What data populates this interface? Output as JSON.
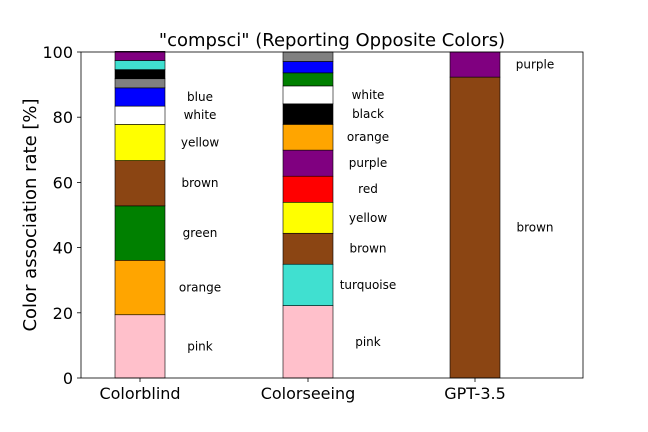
{
  "chart_data": {
    "type": "bar",
    "stacked": true,
    "title": "\"compsci\" (Reporting Opposite Colors)",
    "ylabel": "Color association rate [%]",
    "ylim": [
      0,
      100
    ],
    "yticks": [
      0,
      20,
      40,
      60,
      80,
      100
    ],
    "grid": false,
    "legend": "none",
    "categories": [
      "Colorblind",
      "Colorseeing",
      "GPT-3.5"
    ],
    "bars": [
      {
        "category": "Colorblind",
        "segments": [
          {
            "label": "pink",
            "value": 19.4,
            "color": "#ffc0cb",
            "show_label": true
          },
          {
            "label": "orange",
            "value": 16.7,
            "color": "#ffa500",
            "show_label": true
          },
          {
            "label": "green",
            "value": 16.7,
            "color": "#008000",
            "show_label": true
          },
          {
            "label": "brown",
            "value": 13.9,
            "color": "#8b4513",
            "show_label": true
          },
          {
            "label": "yellow",
            "value": 11.1,
            "color": "#ffff00",
            "show_label": true
          },
          {
            "label": "white",
            "value": 5.6,
            "color": "#ffffff",
            "show_label": true
          },
          {
            "label": "blue",
            "value": 5.6,
            "color": "#0000ff",
            "show_label": true
          },
          {
            "label": "",
            "value": 2.8,
            "color": "#808080",
            "show_label": false
          },
          {
            "label": "",
            "value": 2.8,
            "color": "#000000",
            "show_label": false
          },
          {
            "label": "",
            "value": 2.8,
            "color": "#40e0d0",
            "show_label": false
          },
          {
            "label": "",
            "value": 2.8,
            "color": "#800080",
            "show_label": false
          }
        ]
      },
      {
        "category": "Colorseeing",
        "segments": [
          {
            "label": "pink",
            "value": 22.2,
            "color": "#ffc0cb",
            "show_label": true
          },
          {
            "label": "turquoise",
            "value": 12.7,
            "color": "#40e0d0",
            "show_label": true
          },
          {
            "label": "brown",
            "value": 9.5,
            "color": "#8b4513",
            "show_label": true
          },
          {
            "label": "yellow",
            "value": 9.5,
            "color": "#ffff00",
            "show_label": true
          },
          {
            "label": "red",
            "value": 8.0,
            "color": "#ff0000",
            "show_label": true
          },
          {
            "label": "purple",
            "value": 8.0,
            "color": "#800080",
            "show_label": true
          },
          {
            "label": "orange",
            "value": 7.9,
            "color": "#ffa500",
            "show_label": true
          },
          {
            "label": "black",
            "value": 6.3,
            "color": "#000000",
            "show_label": true
          },
          {
            "label": "white",
            "value": 5.5,
            "color": "#ffffff",
            "show_label": true
          },
          {
            "label": "",
            "value": 4.0,
            "color": "#008000",
            "show_label": false
          },
          {
            "label": "",
            "value": 3.5,
            "color": "#0000ff",
            "show_label": false
          },
          {
            "label": "",
            "value": 2.9,
            "color": "#808080",
            "show_label": false
          }
        ]
      },
      {
        "category": "GPT-3.5",
        "segments": [
          {
            "label": "brown",
            "value": 92.3,
            "color": "#8b4513",
            "show_label": true
          },
          {
            "label": "purple",
            "value": 7.7,
            "color": "#800080",
            "show_label": true
          }
        ]
      }
    ]
  }
}
